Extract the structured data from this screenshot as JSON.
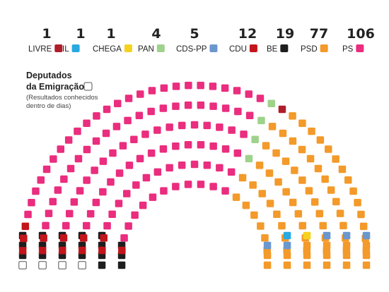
{
  "chart_data": {
    "type": "parliament",
    "total_seats": 230,
    "series": [
      {
        "name": "LIVRE",
        "values": [
          1
        ],
        "color": "#b01e2b"
      },
      {
        "name": "IL",
        "values": [
          1
        ],
        "color": "#29a9e1"
      },
      {
        "name": "CHEGA",
        "values": [
          1
        ],
        "color": "#f4d21f"
      },
      {
        "name": "PAN",
        "values": [
          4
        ],
        "color": "#9fd28b"
      },
      {
        "name": "CDS-PP",
        "values": [
          5
        ],
        "color": "#6b97cf"
      },
      {
        "name": "CDU",
        "values": [
          12
        ],
        "color": "#c3151b"
      },
      {
        "name": "BE",
        "values": [
          19
        ],
        "color": "#1e1e1e"
      },
      {
        "name": "PSD",
        "values": [
          77
        ],
        "color": "#f39a2a"
      },
      {
        "name": "PS",
        "values": [
          106
        ],
        "color": "#ea2d7e"
      }
    ],
    "emigration": {
      "seats": 4,
      "color": "#ffffff"
    },
    "legend": "top"
  },
  "note": {
    "title_line1": "Deputados",
    "title_line2": "da Emigração",
    "sub_line1": "(Resultados conhecidos",
    "sub_line2": "dentro de dias)"
  }
}
